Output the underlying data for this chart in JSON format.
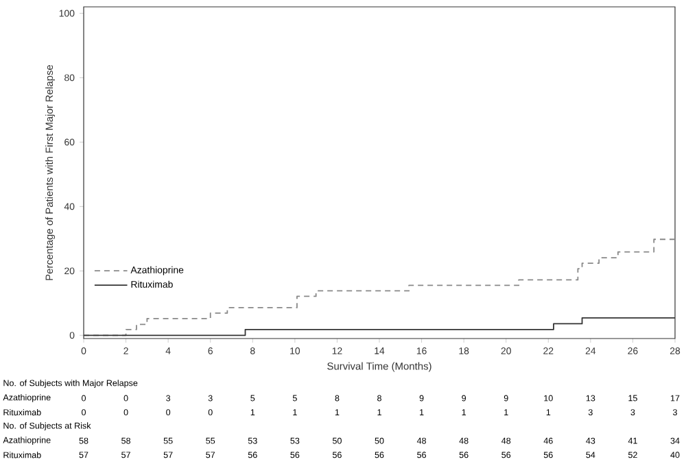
{
  "chart_data": {
    "type": "step",
    "ylabel": "Percentage of Patients with First Major Relapse",
    "xlabel": "Survival Time (Months)",
    "xlim": [
      0,
      28
    ],
    "ylim": [
      -1,
      102
    ],
    "xticks": [
      0,
      2,
      4,
      6,
      8,
      10,
      12,
      14,
      16,
      18,
      20,
      22,
      24,
      26,
      28
    ],
    "yticks": [
      0,
      20,
      40,
      60,
      80,
      100
    ],
    "legend": "left",
    "series": [
      {
        "name": "Azathioprine",
        "color": "#888888",
        "line_style": "dashed",
        "x": [
          0,
          2.0,
          2.5,
          3.0,
          6.0,
          6.8,
          10.1,
          11.0,
          15.4,
          20.6,
          23.4,
          23.6,
          24.4,
          25.3,
          27.0,
          28
        ],
        "values": [
          0,
          1.8,
          3.4,
          5.2,
          6.9,
          8.6,
          12.1,
          13.8,
          15.5,
          17.2,
          20.7,
          22.4,
          24.1,
          25.9,
          29.8,
          29.8
        ]
      },
      {
        "name": "Rituximab",
        "color": "#333333",
        "line_style": "solid",
        "x": [
          0,
          7.65,
          22.25,
          23.6,
          28
        ],
        "values": [
          0,
          1.8,
          3.6,
          5.4,
          5.4
        ]
      }
    ],
    "annotations": [
      "No. of Subjects with Major Relapse",
      "Azathioprine",
      "0",
      "0",
      "3",
      "3",
      "5",
      "5",
      "8",
      "8",
      "9",
      "9",
      "9",
      "10",
      "13",
      "15",
      "17",
      "Rituximab",
      "0",
      "0",
      "0",
      "0",
      "1",
      "1",
      "1",
      "1",
      "1",
      "1",
      "1",
      "1",
      "3",
      "3",
      "3",
      "No. of Subjects at Risk",
      "Azathioprine",
      "58",
      "58",
      "55",
      "55",
      "53",
      "53",
      "50",
      "50",
      "48",
      "48",
      "48",
      "46",
      "43",
      "41",
      "34",
      "Rituximab",
      "57",
      "57",
      "57",
      "57",
      "56",
      "56",
      "56",
      "56",
      "56",
      "56",
      "56",
      "56",
      "54",
      "52",
      "40"
    ]
  }
}
